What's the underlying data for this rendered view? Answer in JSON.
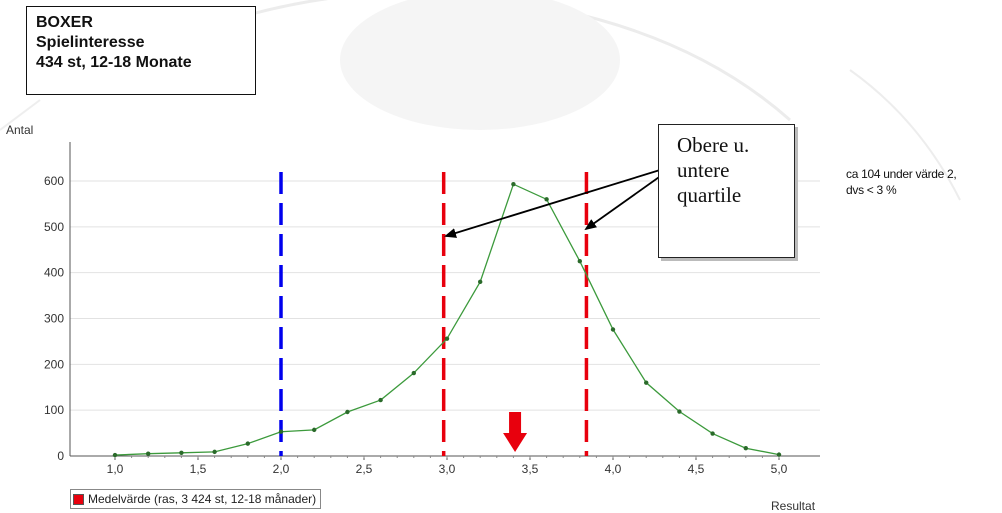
{
  "title_box": {
    "line1": "BOXER",
    "line2": "Spielinteresse",
    "line3": "434 st, 12-18 Monate"
  },
  "callout": {
    "line1": "Obere u.",
    "line2": "untere",
    "line3": "quartile"
  },
  "side_note": {
    "line1": "ca 104 under värde 2,",
    "line2": "dvs < 3 %"
  },
  "legend": {
    "label": "Medelvärde (ras, 3 424 st, 12-18 månader)",
    "color": "#e8000d"
  },
  "chart_data": {
    "type": "line",
    "ylabel": "Antal",
    "xlabel": "Resultat",
    "xlim": [
      0.9,
      5.2
    ],
    "ylim": [
      0,
      630
    ],
    "xticks": [
      1.0,
      1.5,
      2.0,
      2.5,
      3.0,
      3.5,
      4.0,
      4.5,
      5.0
    ],
    "xtick_labels": [
      "1,0",
      "1,5",
      "2,0",
      "2,5",
      "3,0",
      "3,5",
      "4,0",
      "4,5",
      "5,0"
    ],
    "yticks": [
      0,
      100,
      200,
      300,
      400,
      500,
      600
    ],
    "grid": "horizontal",
    "series": [
      {
        "color": "#3c9a3c",
        "x": [
          1.0,
          1.2,
          1.4,
          1.6,
          1.8,
          2.0,
          2.2,
          2.4,
          2.6,
          2.8,
          3.0,
          3.2,
          3.4,
          3.6,
          3.8,
          4.0,
          4.2,
          4.4,
          4.6,
          4.8,
          5.0
        ],
        "y": [
          2,
          5,
          7,
          9,
          27,
          53,
          57,
          96,
          122,
          181,
          256,
          380,
          593,
          560,
          425,
          276,
          160,
          97,
          49,
          17,
          3
        ]
      }
    ],
    "vlines": [
      {
        "x": 2.0,
        "color": "#0000ee",
        "style": "dashed"
      },
      {
        "x": 2.98,
        "color": "#e8000d",
        "style": "dashed"
      },
      {
        "x": 3.84,
        "color": "#e8000d",
        "style": "dashed"
      }
    ],
    "mean_marker": {
      "x": 3.41,
      "color": "#e8000d"
    }
  }
}
